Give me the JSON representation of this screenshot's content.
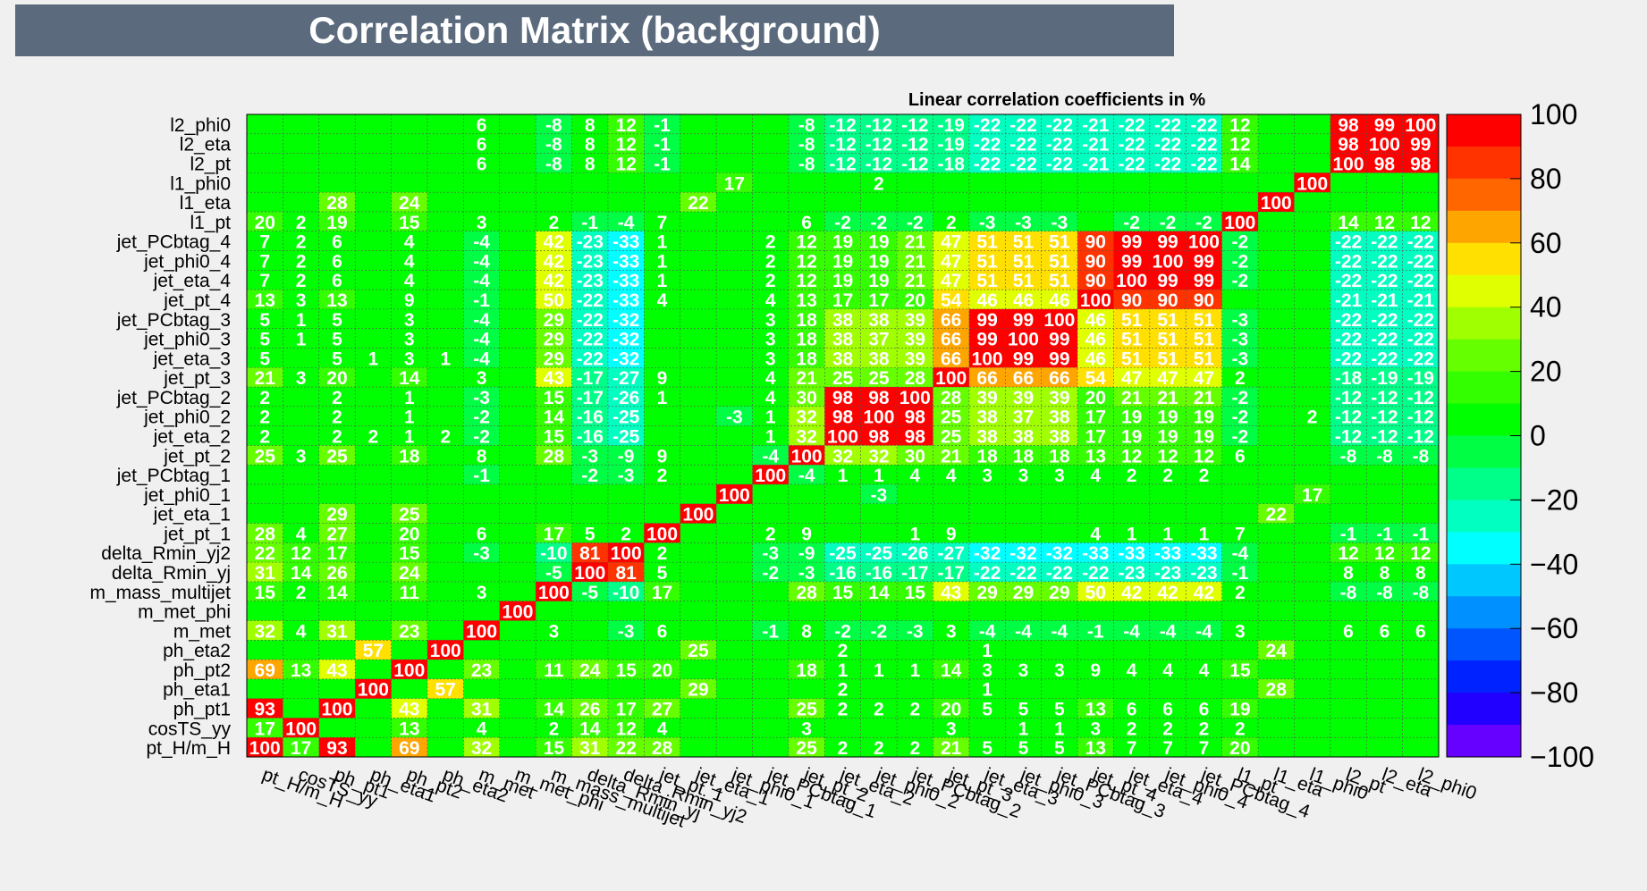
{
  "header": {
    "title": "Correlation Matrix (background)"
  },
  "chart_data": {
    "type": "heatmap",
    "subtitle": "Linear correlation coefficients in %",
    "variables": [
      "pt_H/m_H",
      "cosTS_yy",
      "ph_pt1",
      "ph_eta1",
      "ph_pt2",
      "ph_eta2",
      "m_met",
      "m_met_phi",
      "m_mass_multijet",
      "delta_Rmin_yj",
      "delta_Rmin_yj2",
      "jet_pt_1",
      "jet_eta_1",
      "jet_phi0_1",
      "jet_PCbtag_1",
      "jet_pt_2",
      "jet_eta_2",
      "jet_phi0_2",
      "jet_PCbtag_2",
      "jet_pt_3",
      "jet_eta_3",
      "jet_phi0_3",
      "jet_PCbtag_3",
      "jet_pt_4",
      "jet_eta_4",
      "jet_phi0_4",
      "jet_PCbtag_4",
      "l1_pt",
      "l1_eta",
      "l1_phi0",
      "l2_pt",
      "l2_eta",
      "l2_phi0"
    ],
    "row_order_top_to_bottom": [
      "l2_phi0",
      "l2_eta",
      "l2_pt",
      "l1_phi0",
      "l1_eta",
      "l1_pt",
      "jet_PCbtag_4",
      "jet_phi0_4",
      "jet_eta_4",
      "jet_pt_4",
      "jet_PCbtag_3",
      "jet_phi0_3",
      "jet_eta_3",
      "jet_pt_3",
      "jet_PCbtag_2",
      "jet_phi0_2",
      "jet_eta_2",
      "jet_pt_2",
      "jet_PCbtag_1",
      "jet_phi0_1",
      "jet_eta_1",
      "jet_pt_1",
      "delta_Rmin_yj2",
      "delta_Rmin_yj",
      "m_mass_multijet",
      "m_met_phi",
      "m_met",
      "ph_eta2",
      "ph_pt2",
      "ph_eta1",
      "ph_pt1",
      "cosTS_yy",
      "pt_H/m_H"
    ],
    "values": [
      [
        null,
        null,
        null,
        null,
        null,
        null,
        6,
        null,
        -8,
        8,
        12,
        -1,
        null,
        null,
        null,
        -8,
        -12,
        -12,
        -12,
        -19,
        -22,
        -22,
        -22,
        -21,
        -22,
        -22,
        -22,
        12,
        null,
        null,
        98,
        99,
        100
      ],
      [
        null,
        null,
        null,
        null,
        null,
        null,
        6,
        null,
        -8,
        8,
        12,
        -1,
        null,
        null,
        null,
        -8,
        -12,
        -12,
        -12,
        -19,
        -22,
        -22,
        -22,
        -21,
        -22,
        -22,
        -22,
        12,
        null,
        null,
        98,
        100,
        99
      ],
      [
        null,
        null,
        null,
        null,
        null,
        null,
        6,
        null,
        -8,
        8,
        12,
        -1,
        null,
        null,
        null,
        -8,
        -12,
        -12,
        -12,
        -18,
        -22,
        -22,
        -22,
        -21,
        -22,
        -22,
        -22,
        14,
        null,
        null,
        100,
        98,
        98
      ],
      [
        null,
        null,
        null,
        null,
        null,
        null,
        null,
        null,
        null,
        null,
        null,
        null,
        null,
        17,
        null,
        null,
        null,
        2,
        null,
        null,
        null,
        null,
        null,
        null,
        null,
        null,
        null,
        null,
        null,
        100,
        null,
        null,
        null
      ],
      [
        null,
        null,
        28,
        null,
        24,
        null,
        null,
        null,
        null,
        null,
        null,
        null,
        22,
        null,
        null,
        null,
        null,
        null,
        null,
        null,
        null,
        null,
        null,
        null,
        null,
        null,
        null,
        null,
        100,
        null,
        null,
        null,
        null
      ],
      [
        20,
        2,
        19,
        null,
        15,
        null,
        3,
        null,
        2,
        -1,
        -4,
        7,
        null,
        null,
        null,
        6,
        -2,
        -2,
        -2,
        2,
        -3,
        -3,
        -3,
        null,
        -2,
        -2,
        -2,
        100,
        null,
        null,
        14,
        12,
        12
      ],
      [
        7,
        2,
        6,
        null,
        4,
        null,
        -4,
        null,
        42,
        -23,
        -33,
        1,
        null,
        null,
        2,
        12,
        19,
        19,
        21,
        47,
        51,
        51,
        51,
        90,
        99,
        99,
        100,
        -2,
        null,
        null,
        -22,
        -22,
        -22
      ],
      [
        7,
        2,
        6,
        null,
        4,
        null,
        -4,
        null,
        42,
        -23,
        -33,
        1,
        null,
        null,
        2,
        12,
        19,
        19,
        21,
        47,
        51,
        51,
        51,
        90,
        99,
        100,
        99,
        -2,
        null,
        null,
        -22,
        -22,
        -22
      ],
      [
        7,
        2,
        6,
        null,
        4,
        null,
        -4,
        null,
        42,
        -23,
        -33,
        1,
        null,
        null,
        2,
        12,
        19,
        19,
        21,
        47,
        51,
        51,
        51,
        90,
        100,
        99,
        99,
        -2,
        null,
        null,
        -22,
        -22,
        -22
      ],
      [
        13,
        3,
        13,
        null,
        9,
        null,
        -1,
        null,
        50,
        -22,
        -33,
        4,
        null,
        null,
        4,
        13,
        17,
        17,
        20,
        54,
        46,
        46,
        46,
        100,
        90,
        90,
        90,
        null,
        null,
        null,
        -21,
        -21,
        -21
      ],
      [
        5,
        1,
        5,
        null,
        3,
        null,
        -4,
        null,
        29,
        -22,
        -32,
        null,
        null,
        null,
        3,
        18,
        38,
        38,
        39,
        66,
        99,
        99,
        100,
        46,
        51,
        51,
        51,
        -3,
        null,
        null,
        -22,
        -22,
        -22
      ],
      [
        5,
        1,
        5,
        null,
        3,
        null,
        -4,
        null,
        29,
        -22,
        -32,
        null,
        null,
        null,
        3,
        18,
        38,
        37,
        39,
        66,
        99,
        100,
        99,
        46,
        51,
        51,
        51,
        -3,
        null,
        null,
        -22,
        -22,
        -22
      ],
      [
        5,
        null,
        5,
        1,
        3,
        1,
        -4,
        null,
        29,
        -22,
        -32,
        null,
        null,
        null,
        3,
        18,
        38,
        38,
        39,
        66,
        100,
        99,
        99,
        46,
        51,
        51,
        51,
        -3,
        null,
        null,
        -22,
        -22,
        -22
      ],
      [
        21,
        3,
        20,
        null,
        14,
        null,
        3,
        null,
        43,
        -17,
        -27,
        9,
        null,
        null,
        4,
        21,
        25,
        25,
        28,
        100,
        66,
        66,
        66,
        54,
        47,
        47,
        47,
        2,
        null,
        null,
        -18,
        -19,
        -19
      ],
      [
        2,
        null,
        2,
        null,
        1,
        null,
        -3,
        null,
        15,
        -17,
        -26,
        1,
        null,
        null,
        4,
        30,
        98,
        98,
        100,
        28,
        39,
        39,
        39,
        20,
        21,
        21,
        21,
        -2,
        null,
        null,
        -12,
        -12,
        -12
      ],
      [
        2,
        null,
        2,
        null,
        1,
        null,
        -2,
        null,
        14,
        -16,
        -25,
        null,
        null,
        -3,
        1,
        32,
        98,
        100,
        98,
        25,
        38,
        37,
        38,
        17,
        19,
        19,
        19,
        -2,
        null,
        2,
        -12,
        -12,
        -12
      ],
      [
        2,
        null,
        2,
        2,
        1,
        2,
        -2,
        null,
        15,
        -16,
        -25,
        null,
        null,
        null,
        1,
        32,
        100,
        98,
        98,
        25,
        38,
        38,
        38,
        17,
        19,
        19,
        19,
        -2,
        null,
        null,
        -12,
        -12,
        -12
      ],
      [
        25,
        3,
        25,
        null,
        18,
        null,
        8,
        null,
        28,
        -3,
        -9,
        9,
        null,
        null,
        -4,
        100,
        32,
        32,
        30,
        21,
        18,
        18,
        18,
        13,
        12,
        12,
        12,
        6,
        null,
        null,
        -8,
        -8,
        -8
      ],
      [
        null,
        null,
        null,
        null,
        null,
        null,
        -1,
        null,
        null,
        -2,
        -3,
        2,
        null,
        null,
        100,
        -4,
        1,
        1,
        4,
        4,
        3,
        3,
        3,
        4,
        2,
        2,
        2,
        null,
        null,
        null,
        null,
        null,
        null
      ],
      [
        null,
        null,
        null,
        null,
        null,
        null,
        null,
        null,
        null,
        null,
        null,
        null,
        null,
        100,
        null,
        null,
        null,
        -3,
        null,
        null,
        null,
        null,
        null,
        null,
        null,
        null,
        null,
        null,
        null,
        17,
        null,
        null,
        null
      ],
      [
        null,
        null,
        29,
        null,
        25,
        null,
        null,
        null,
        null,
        null,
        null,
        null,
        100,
        null,
        null,
        null,
        null,
        null,
        null,
        null,
        null,
        null,
        null,
        null,
        null,
        null,
        null,
        null,
        22,
        null,
        null,
        null,
        null
      ],
      [
        28,
        4,
        27,
        null,
        20,
        null,
        6,
        null,
        17,
        5,
        2,
        100,
        null,
        null,
        2,
        9,
        null,
        null,
        1,
        9,
        null,
        null,
        null,
        4,
        1,
        1,
        1,
        7,
        null,
        null,
        -1,
        -1,
        -1
      ],
      [
        22,
        12,
        17,
        null,
        15,
        null,
        -3,
        null,
        -10,
        81,
        100,
        2,
        null,
        null,
        -3,
        -9,
        -25,
        -25,
        -26,
        -27,
        -32,
        -32,
        -32,
        -33,
        -33,
        -33,
        -33,
        -4,
        null,
        null,
        12,
        12,
        12
      ],
      [
        31,
        14,
        26,
        null,
        24,
        null,
        null,
        null,
        -5,
        100,
        81,
        5,
        null,
        null,
        -2,
        -3,
        -16,
        -16,
        -17,
        -17,
        -22,
        -22,
        -22,
        -22,
        -23,
        -23,
        -23,
        -1,
        null,
        null,
        8,
        8,
        8
      ],
      [
        15,
        2,
        14,
        null,
        11,
        null,
        3,
        null,
        100,
        -5,
        -10,
        17,
        null,
        null,
        null,
        28,
        15,
        14,
        15,
        43,
        29,
        29,
        29,
        50,
        42,
        42,
        42,
        2,
        null,
        null,
        -8,
        -8,
        -8
      ],
      [
        null,
        null,
        null,
        null,
        null,
        null,
        null,
        100,
        null,
        null,
        null,
        null,
        null,
        null,
        null,
        null,
        null,
        null,
        null,
        null,
        null,
        null,
        null,
        null,
        null,
        null,
        null,
        null,
        null,
        null,
        null,
        null,
        null
      ],
      [
        32,
        4,
        31,
        null,
        23,
        null,
        100,
        null,
        3,
        null,
        -3,
        6,
        null,
        null,
        -1,
        8,
        -2,
        -2,
        -3,
        3,
        -4,
        -4,
        -4,
        -1,
        -4,
        -4,
        -4,
        3,
        null,
        null,
        6,
        6,
        6
      ],
      [
        null,
        null,
        null,
        57,
        null,
        100,
        null,
        null,
        null,
        null,
        null,
        null,
        25,
        null,
        null,
        null,
        2,
        null,
        null,
        null,
        1,
        null,
        null,
        null,
        null,
        null,
        null,
        null,
        24,
        null,
        null,
        null,
        null
      ],
      [
        69,
        13,
        43,
        null,
        100,
        null,
        23,
        null,
        11,
        24,
        15,
        20,
        null,
        null,
        null,
        18,
        1,
        1,
        1,
        14,
        3,
        3,
        3,
        9,
        4,
        4,
        4,
        15,
        null,
        null,
        null,
        null,
        null
      ],
      [
        null,
        null,
        null,
        100,
        null,
        57,
        null,
        null,
        null,
        null,
        null,
        null,
        29,
        null,
        null,
        null,
        2,
        null,
        null,
        null,
        1,
        null,
        null,
        null,
        null,
        null,
        null,
        null,
        28,
        null,
        null,
        null,
        null
      ],
      [
        93,
        null,
        100,
        null,
        43,
        null,
        31,
        null,
        14,
        26,
        17,
        27,
        null,
        null,
        null,
        25,
        2,
        2,
        2,
        20,
        5,
        5,
        5,
        13,
        6,
        6,
        6,
        19,
        null,
        null,
        null,
        null,
        null
      ],
      [
        17,
        100,
        null,
        null,
        13,
        null,
        4,
        null,
        2,
        14,
        12,
        4,
        null,
        null,
        null,
        3,
        null,
        null,
        null,
        3,
        null,
        1,
        1,
        3,
        2,
        2,
        2,
        2,
        null,
        null,
        null,
        null,
        null
      ],
      [
        100,
        17,
        93,
        null,
        69,
        null,
        32,
        null,
        15,
        31,
        22,
        28,
        null,
        null,
        null,
        25,
        2,
        2,
        2,
        21,
        5,
        5,
        5,
        13,
        7,
        7,
        7,
        20,
        null,
        null,
        null,
        null,
        null
      ]
    ],
    "zlim": [
      -100,
      100
    ],
    "colorbar_ticks": [
      "100",
      "80",
      "60",
      "40",
      "20",
      "0",
      "−20",
      "−40",
      "−60",
      "−80",
      "−100"
    ],
    "colorbar_colors": [
      "#ff0000",
      "#ff3300",
      "#ff6600",
      "#ffa500",
      "#ffe000",
      "#e0ff00",
      "#a0ff00",
      "#66ff00",
      "#33ff00",
      "#00ff00",
      "#00ff44",
      "#00ff88",
      "#00ffc0",
      "#00ffff",
      "#00c8ff",
      "#0090ff",
      "#0055ff",
      "#0022ff",
      "#2200ff",
      "#6600ff"
    ],
    "cell_background": "#00ff00",
    "grid": true,
    "colors": {
      "title_bg": "#5b6b7d",
      "page_bg": "#f0f0f0"
    }
  }
}
